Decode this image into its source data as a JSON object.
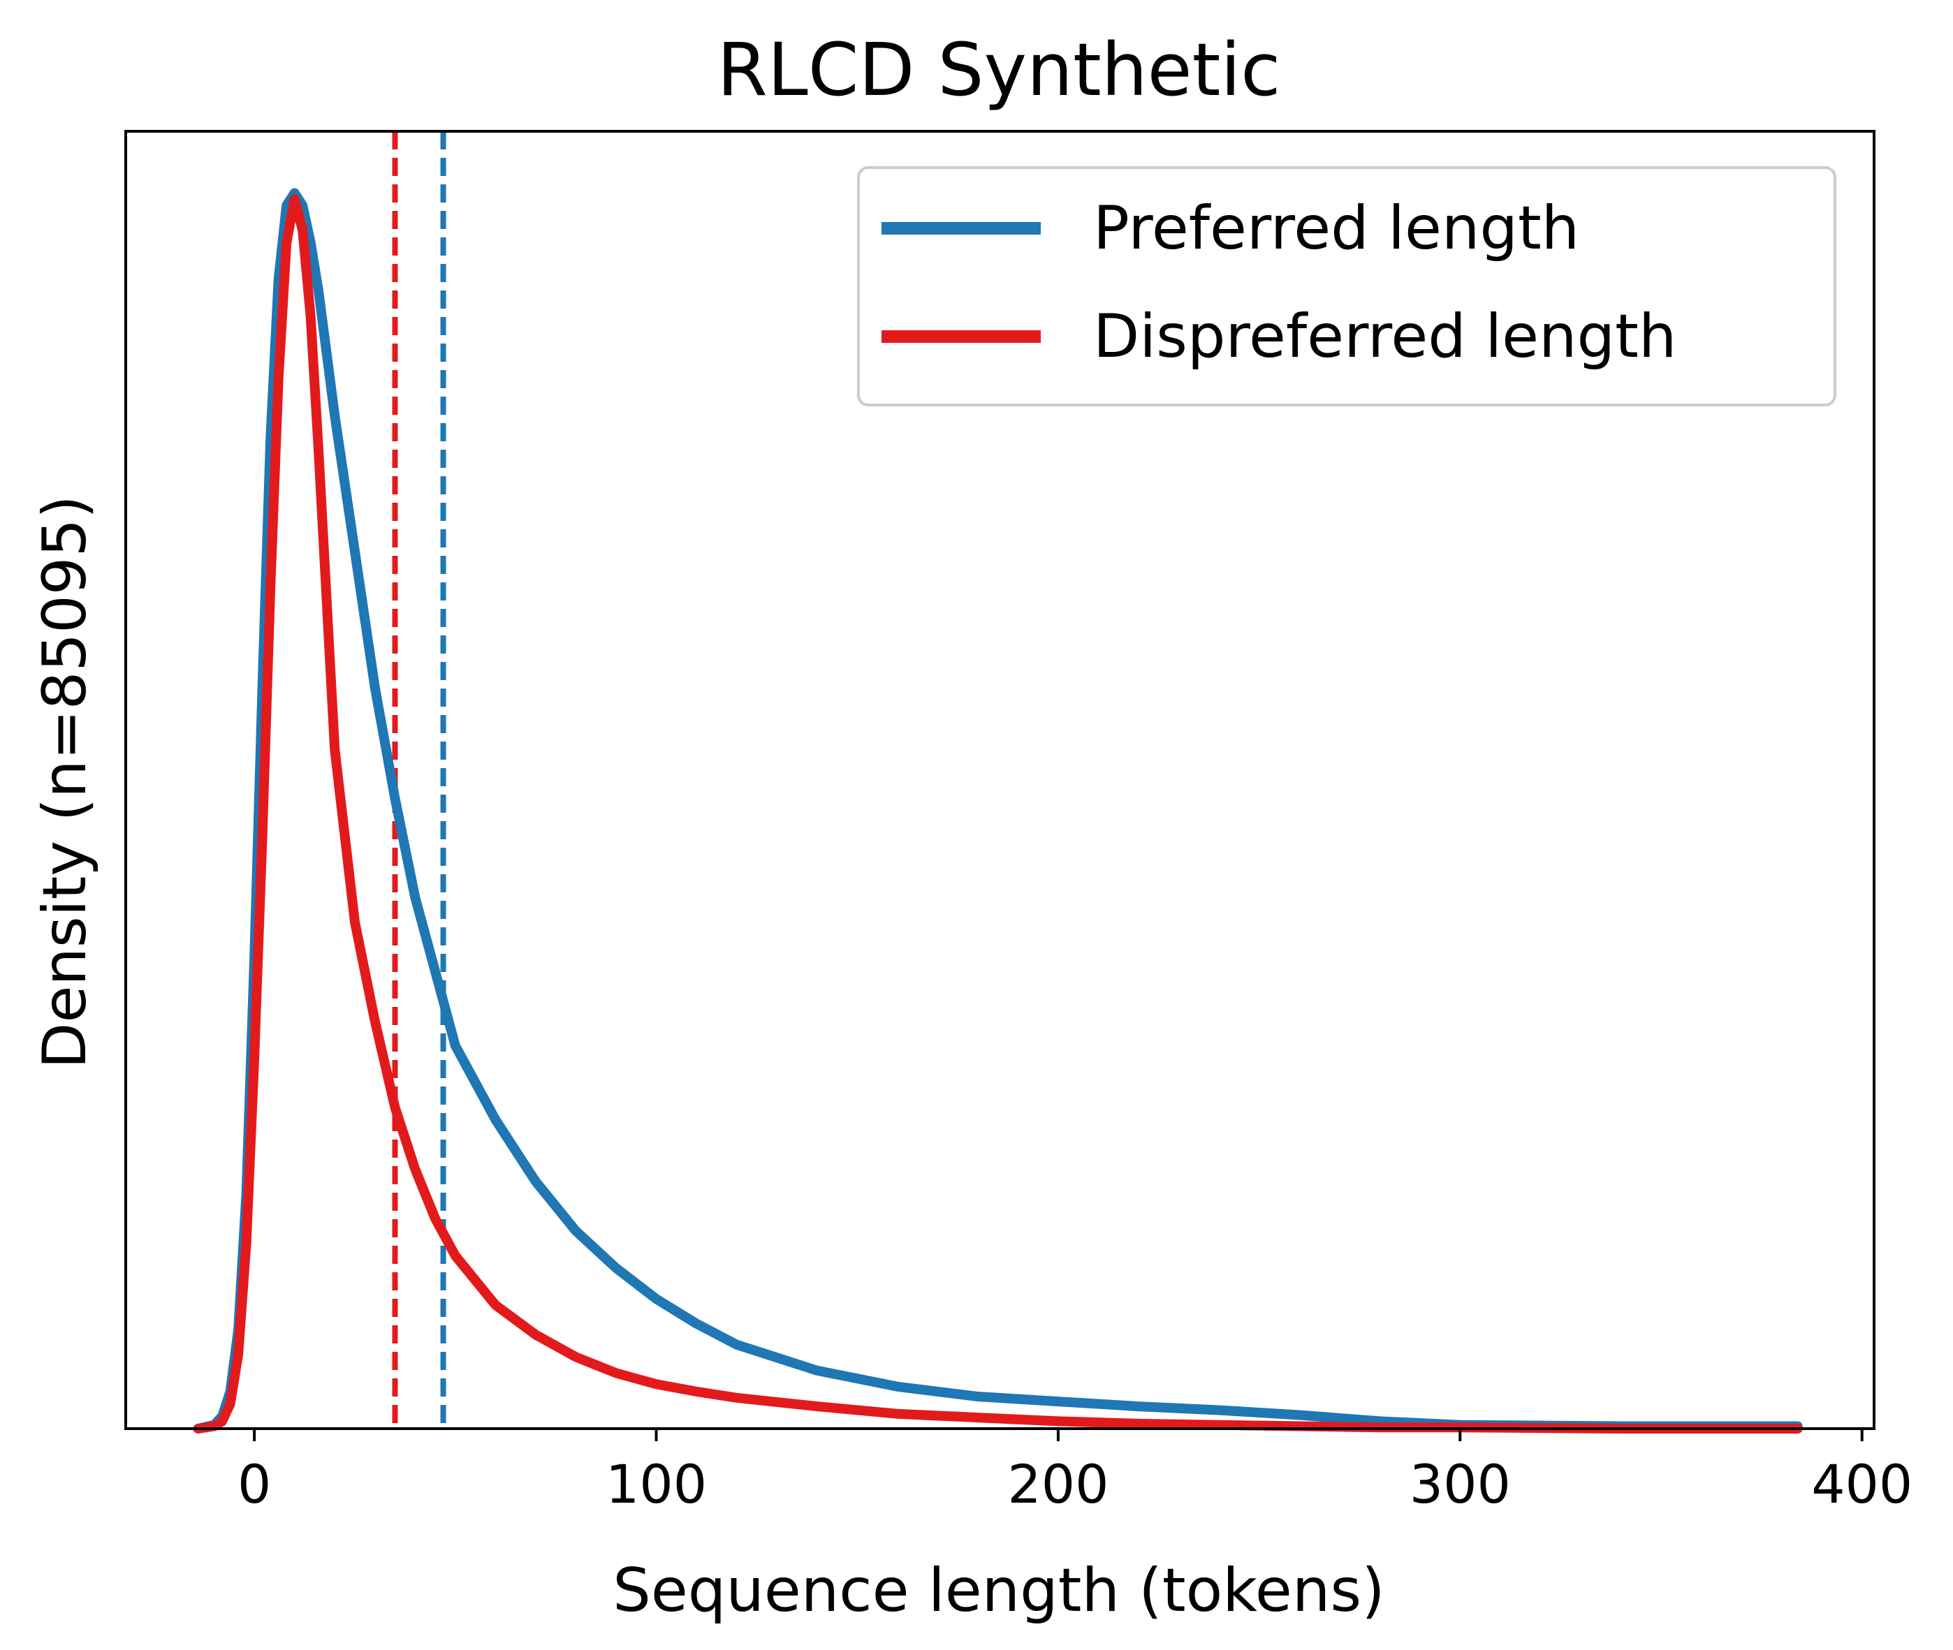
{
  "chart_data": {
    "type": "line",
    "title": "RLCD Synthetic",
    "xlabel": "Sequence length (tokens)",
    "ylabel": "Density (n=85095)",
    "xlim": [
      -32,
      403
    ],
    "ylim": [
      0,
      1.05
    ],
    "xticks": [
      0,
      100,
      200,
      300,
      400
    ],
    "yticks": [],
    "grid": false,
    "legend": {
      "position": "top-right",
      "entries": [
        "Preferred length",
        "Dispreferred length"
      ]
    },
    "series": [
      {
        "name": "Preferred length",
        "color": "#1f77b4",
        "mean_line": 47,
        "x": [
          -14,
          -10,
          -8,
          -6,
          -4,
          -2,
          0,
          2,
          4,
          6,
          8,
          10,
          12,
          14,
          16,
          18,
          20,
          25,
          30,
          35,
          40,
          45,
          50,
          60,
          70,
          80,
          90,
          100,
          110,
          120,
          140,
          160,
          180,
          200,
          220,
          240,
          260,
          280,
          300,
          340,
          384
        ],
        "y": [
          0.0,
          0.003,
          0.01,
          0.03,
          0.08,
          0.19,
          0.38,
          0.6,
          0.8,
          0.93,
          0.99,
          1.0,
          0.99,
          0.96,
          0.92,
          0.87,
          0.82,
          0.71,
          0.6,
          0.51,
          0.43,
          0.37,
          0.31,
          0.25,
          0.2,
          0.16,
          0.13,
          0.105,
          0.085,
          0.068,
          0.047,
          0.034,
          0.026,
          0.022,
          0.018,
          0.015,
          0.011,
          0.006,
          0.003,
          0.002,
          0.002
        ]
      },
      {
        "name": "Dispreferred length",
        "color": "#e31a1c",
        "mean_line": 35,
        "x": [
          -14,
          -10,
          -8,
          -6,
          -4,
          -2,
          0,
          2,
          4,
          6,
          8,
          10,
          12,
          14,
          16,
          18,
          20,
          25,
          30,
          35,
          40,
          45,
          50,
          60,
          70,
          80,
          90,
          100,
          110,
          120,
          140,
          160,
          180,
          200,
          220,
          240,
          260,
          280,
          300,
          340,
          384
        ],
        "y": [
          0.0,
          0.002,
          0.006,
          0.02,
          0.06,
          0.15,
          0.3,
          0.48,
          0.68,
          0.85,
          0.96,
          0.995,
          0.97,
          0.9,
          0.79,
          0.67,
          0.55,
          0.41,
          0.33,
          0.26,
          0.21,
          0.17,
          0.14,
          0.1,
          0.076,
          0.058,
          0.045,
          0.036,
          0.03,
          0.025,
          0.018,
          0.012,
          0.009,
          0.006,
          0.004,
          0.003,
          0.002,
          0.001,
          0.001,
          0.0,
          0.0
        ]
      }
    ]
  }
}
